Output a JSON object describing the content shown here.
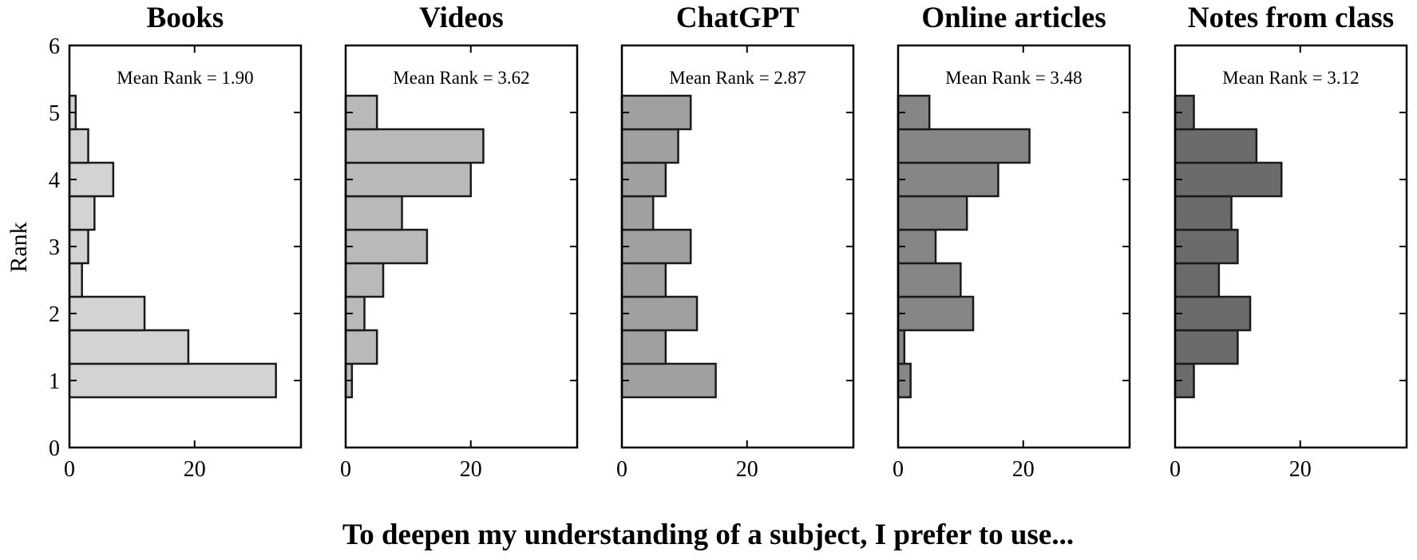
{
  "figure": {
    "xlabel": "To deepen my understanding of a subject, I prefer to use...",
    "ylabel": "Rank"
  },
  "chart_data": {
    "type": "bar",
    "orientation": "horizontal",
    "bin_width": 0.5,
    "ylim": [
      0,
      6
    ],
    "yticks": [
      0,
      1,
      2,
      3,
      4,
      5,
      6
    ],
    "xlim": [
      0,
      37
    ],
    "xticks": [
      0,
      20
    ],
    "grid": false,
    "bin_centers": [
      1.0,
      1.5,
      2.0,
      2.5,
      3.0,
      3.5,
      4.0,
      4.5,
      5.0
    ],
    "panels": [
      {
        "title": "Books",
        "annotation": "Mean Rank = 1.90",
        "color": "#d3d3d3",
        "values": [
          33,
          19,
          12,
          2,
          3,
          4,
          7,
          3,
          1
        ]
      },
      {
        "title": "Videos",
        "annotation": "Mean Rank = 3.62",
        "color": "#b9b9b9",
        "values": [
          1,
          5,
          3,
          6,
          13,
          9,
          20,
          22,
          5
        ]
      },
      {
        "title": "ChatGPT",
        "annotation": "Mean Rank = 2.87",
        "color": "#a0a0a0",
        "values": [
          15,
          7,
          12,
          7,
          11,
          5,
          7,
          9,
          11
        ]
      },
      {
        "title": "Online articles",
        "annotation": "Mean Rank = 3.48",
        "color": "#868686",
        "values": [
          2,
          1,
          12,
          10,
          6,
          11,
          16,
          21,
          5
        ]
      },
      {
        "title": "Notes from class",
        "annotation": "Mean Rank = 3.12",
        "color": "#6b6b6b",
        "values": [
          3,
          10,
          12,
          7,
          10,
          9,
          17,
          13,
          3
        ]
      }
    ]
  }
}
